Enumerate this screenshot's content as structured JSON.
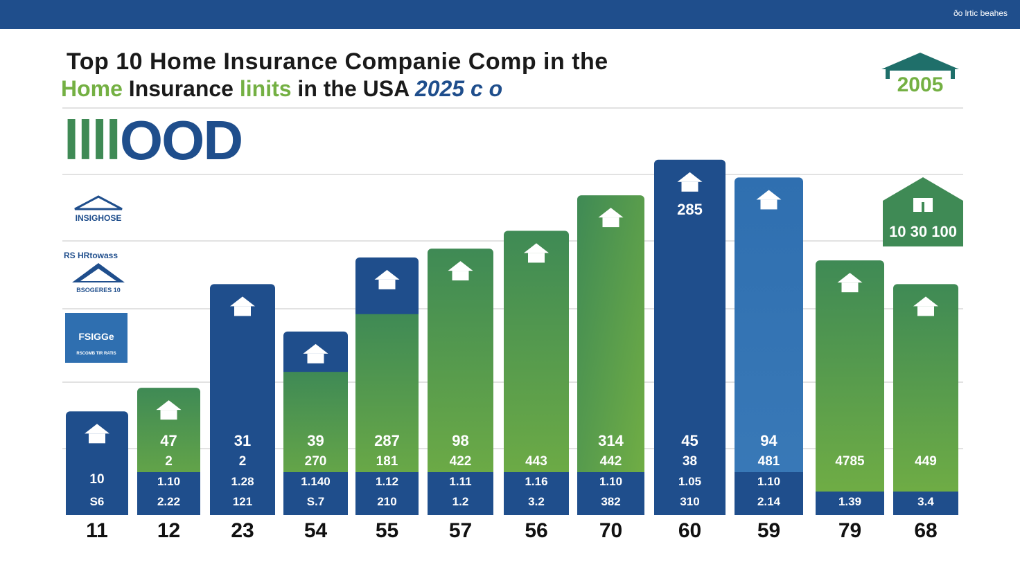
{
  "topbar": {
    "text": "ðo lrtic bеahes"
  },
  "title": {
    "line1": "Top 10 Home Insurance Companie Comp in the",
    "line2_part1": "Home",
    "line2_part2": "Insurance",
    "line2_part3": "linits",
    "line2_part4": "in the USA",
    "line2_part5": "2025 c o"
  },
  "big_number": {
    "part1": "llll",
    "part2": "OO",
    "part3": "D"
  },
  "year_badge": {
    "text": "2005"
  },
  "house_badge": {
    "text": "10 30 100"
  },
  "legend": {
    "item1": "INSIGHOSE",
    "item2": "RS HRtowass",
    "item3": "BSOGERES 10",
    "item4": "FSIGGe",
    "item4_sub": "RSCOMB TIR RATIS"
  },
  "colors": {
    "dark_blue": "#1f4e8c",
    "mid_blue": "#2f6fb0",
    "green": "#74b043",
    "teal_green": "#3f8a55",
    "grid": "#e2e2e2"
  },
  "chart_data": {
    "type": "bar",
    "title": "Top 10 Home Insurance Companie Comp in the Home Insurance linits in the USA",
    "categories": [
      "11",
      "12",
      "23",
      "54",
      "55",
      "57",
      "56",
      "70",
      "60",
      "59",
      "79",
      "68"
    ],
    "values": [
      11,
      12,
      23,
      54,
      55,
      57,
      56,
      70,
      60,
      59,
      79,
      68
    ],
    "heights": [
      35,
      43,
      78,
      62,
      87,
      90,
      96,
      108,
      120,
      114,
      86,
      78
    ],
    "mid_labels": [
      "",
      "47",
      "31",
      "39",
      "287",
      "98",
      "",
      "314",
      "45",
      "94",
      "",
      ""
    ],
    "sub_labels": [
      "10",
      "2",
      "2",
      "270",
      "181",
      "422",
      "443",
      "442",
      "38",
      "481",
      "4785",
      "449"
    ],
    "row1_labels": [
      "",
      "1.10",
      "1.28",
      "1.140",
      "1.12",
      "1.11",
      "1.16",
      "1.10",
      "1.05",
      "1.10",
      "",
      ""
    ],
    "row2_labels": [
      "S6",
      "2.22",
      "121",
      "S.7",
      "210",
      "1.2",
      "3.2",
      "382",
      "310",
      "2.14",
      "1.39",
      "3.4"
    ],
    "peak_label": "285",
    "ylim": [
      0,
      130
    ],
    "xlabel": "",
    "ylabel": "",
    "grid": true
  }
}
